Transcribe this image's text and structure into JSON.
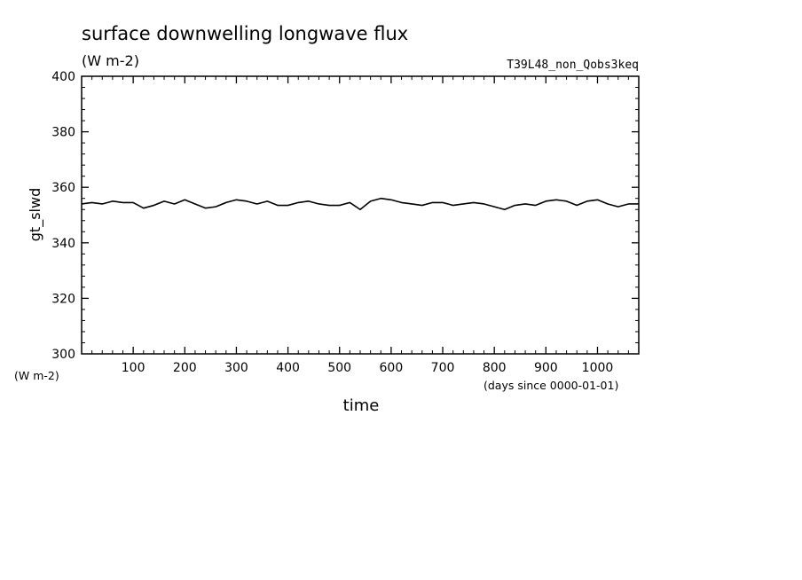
{
  "figure": {
    "title": "surface downwelling longwave flux",
    "units": "(W m-2)",
    "experiment": "T39L48_non_Qobs3keq",
    "y_units_label": "(W m-2)",
    "x_units_label": "(days since 0000-01-01)"
  },
  "chart_data": {
    "type": "line",
    "title": "surface downwelling longwave flux",
    "xlabel": "time",
    "ylabel": "gt_slwd",
    "xlim": [
      0,
      1080
    ],
    "ylim": [
      300,
      400
    ],
    "x_ticks": [
      100,
      200,
      300,
      400,
      500,
      600,
      700,
      800,
      900,
      1000
    ],
    "x_tick_labels": [
      "100",
      "200",
      "300",
      "400",
      "500",
      "600",
      "700",
      "800",
      "900",
      "1000"
    ],
    "y_ticks": [
      300,
      320,
      340,
      360,
      380,
      400
    ],
    "y_tick_labels": [
      "300",
      "320",
      "340",
      "360",
      "380",
      "400"
    ],
    "grid": false,
    "series": [
      {
        "x": [
          0,
          20,
          40,
          60,
          80,
          100,
          120,
          140,
          160,
          180,
          200,
          220,
          240,
          260,
          280,
          300,
          320,
          340,
          360,
          380,
          400,
          420,
          440,
          460,
          480,
          500,
          520,
          540,
          560,
          580,
          600,
          620,
          640,
          660,
          680,
          700,
          720,
          740,
          760,
          780,
          800,
          820,
          840,
          860,
          880,
          900,
          920,
          940,
          960,
          980,
          1000,
          1020,
          1040,
          1060,
          1080
        ],
        "values": [
          354,
          354.5,
          354,
          355,
          354.5,
          354.5,
          352.5,
          353.5,
          355,
          354,
          355.5,
          354,
          352.5,
          353,
          354.5,
          355.5,
          355,
          354,
          355,
          353.5,
          353.5,
          354.5,
          355,
          354,
          353.5,
          353.5,
          354.5,
          352,
          355,
          356,
          355.5,
          354.5,
          354,
          353.5,
          354.5,
          354.5,
          353.5,
          354,
          354.5,
          354,
          353,
          352,
          353.5,
          354,
          353.5,
          355,
          355.5,
          355,
          353.5,
          355,
          355.5,
          354,
          353,
          354,
          354
        ]
      }
    ]
  }
}
